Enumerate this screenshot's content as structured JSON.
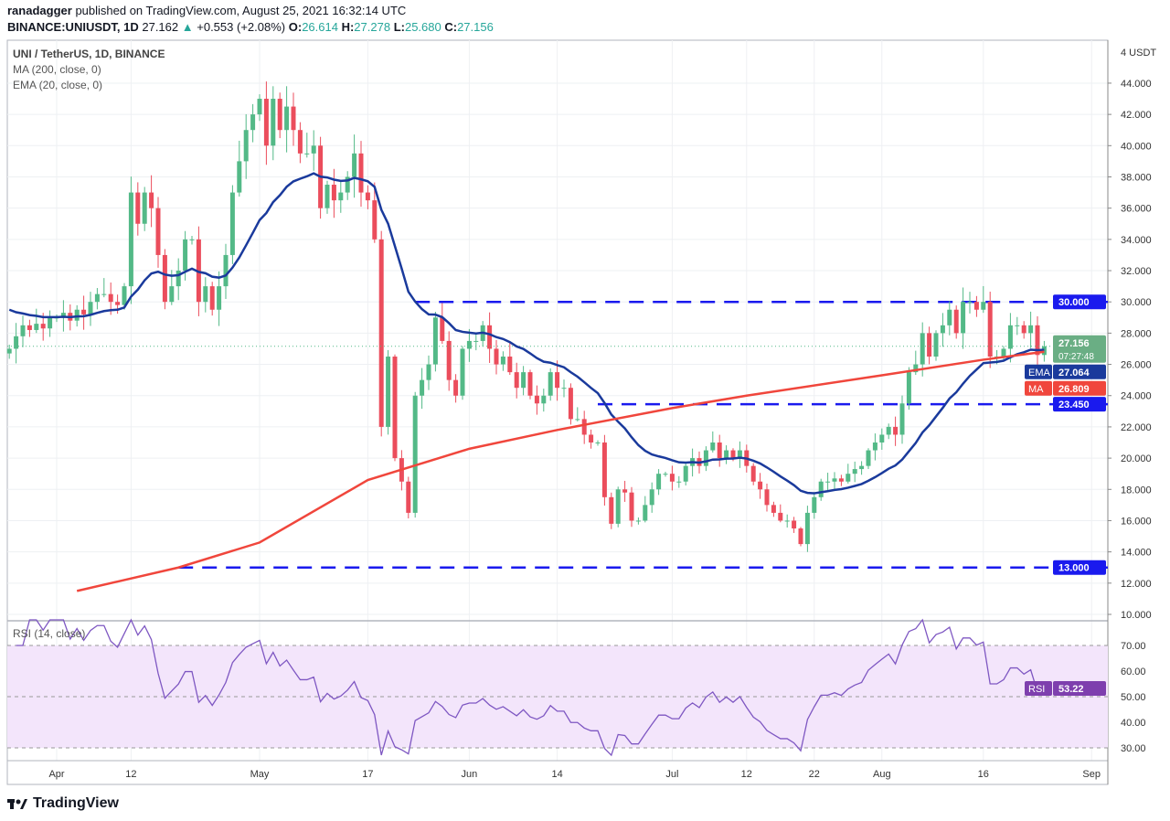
{
  "header": {
    "publisher": "ranadagger",
    "published_text": "published on TradingView.com, August 25, 2021 16:32:14 UTC",
    "symbol": "BINANCE:UNIUSDT, 1D",
    "last": "27.162",
    "change": "+0.553 (+2.08%)",
    "o_label": "O:",
    "o": "26.614",
    "h_label": "H:",
    "h": "27.278",
    "l_label": "L:",
    "l": "25.680",
    "c_label": "C:",
    "c": "27.156"
  },
  "legend": {
    "title": "UNI / TetherUS, 1D, BINANCE",
    "ma": "MA (200, close, 0)",
    "ema": "EMA (20, close, 0)",
    "rsi": "RSI (14, close)"
  },
  "labels": {
    "close": "27.156",
    "countdown": "07:27:48",
    "ema_tag": "EMA",
    "ema": "27.064",
    "ma_tag": "MA",
    "ma": "26.809",
    "rsi_tag": "RSI",
    "rsi": "53.22",
    "currency": "USDT"
  },
  "logo": "TradingView",
  "colors": {
    "up": "#53b987",
    "down": "#eb4d5c",
    "ema": "#1a3a9c",
    "ma": "#f0463c",
    "level": "#1a1aee",
    "rsi": "#7e57c2"
  },
  "chart_data": {
    "type": "candlestick",
    "title": "UNI / TetherUS, 1D, BINANCE",
    "start_date": "2021-03-25",
    "closes": [
      27,
      27.8,
      28.5,
      28.2,
      28.6,
      28.3,
      29,
      29,
      29.3,
      28.8,
      29.5,
      29.2,
      30,
      30.5,
      30.5,
      30,
      29.8,
      31,
      37,
      35,
      37,
      36,
      33,
      30,
      31,
      32,
      34,
      34,
      30,
      31,
      29.5,
      31,
      33,
      37,
      39,
      41,
      42,
      43,
      40,
      43,
      41,
      42.5,
      41,
      39.5,
      39.5,
      40,
      36,
      37.5,
      36.5,
      37,
      38,
      39.5,
      37,
      36.5,
      34,
      22,
      26.5,
      20,
      18.5,
      16.5,
      24,
      25,
      26,
      29,
      27.5,
      25,
      24,
      27,
      27.5,
      27.5,
      28.5,
      27,
      26,
      26.5,
      25.5,
      24.5,
      25.5,
      24,
      23.5,
      24,
      25.5,
      24.5,
      24.5,
      22.5,
      22.5,
      21.5,
      21,
      21,
      17.5,
      15.8,
      18,
      17.8,
      16,
      16,
      17,
      18,
      19,
      19,
      18.5,
      18.5,
      19.5,
      20,
      19.5,
      20.5,
      21,
      20,
      20.5,
      20,
      20.5,
      19.5,
      18.5,
      18,
      17,
      16.5,
      16,
      16,
      15.5,
      14.5,
      16.5,
      17.5,
      18.5,
      18.5,
      18.7,
      18.5,
      19,
      19.3,
      19.5,
      20.5,
      21,
      21.5,
      22,
      21.5,
      23.5,
      25.5,
      26,
      28,
      26.5,
      28,
      28.5,
      29.5,
      28,
      30,
      30,
      29.5,
      30,
      26.5,
      26.5,
      27,
      28.5,
      28.5,
      28,
      28.5,
      26.6,
      27.156
    ],
    "ma200": [
      [
        "2021-04-04",
        11.5
      ],
      [
        "2021-04-19",
        13
      ],
      [
        "2021-05-01",
        14.6
      ],
      [
        "2021-05-17",
        18.6
      ],
      [
        "2021-06-01",
        20.6
      ],
      [
        "2021-06-14",
        21.8
      ],
      [
        "2021-07-01",
        23.2
      ],
      [
        "2021-07-12",
        24
      ],
      [
        "2021-08-01",
        25.3
      ],
      [
        "2021-08-16",
        26.3
      ],
      [
        "2021-08-25",
        26.81
      ]
    ],
    "levels": [
      {
        "value": 30,
        "label": "30.000",
        "from": "2021-05-24"
      },
      {
        "value": 23.45,
        "label": "23.450",
        "from": "2021-06-20"
      },
      {
        "value": 13,
        "label": "13.000",
        "from": "2021-04-19"
      }
    ],
    "y_ticks": [
      "10.000",
      "12.000",
      "14.000",
      "16.000",
      "18.000",
      "20.000",
      "22.000",
      "24.000",
      "26.000",
      "28.000",
      "30.000",
      "32.000",
      "34.000",
      "36.000",
      "38.000",
      "40.000",
      "42.000",
      "44.000"
    ],
    "ylim": [
      10,
      46
    ],
    "rsi_ticks": [
      "30.00",
      "40.00",
      "50.00",
      "60.00",
      "70.00"
    ],
    "rsi_band": [
      30,
      70
    ],
    "x_ticks": [
      [
        "Apr",
        "2021-04-01"
      ],
      [
        "12",
        "2021-04-12"
      ],
      [
        "May",
        "2021-05-01"
      ],
      [
        "17",
        "2021-05-17"
      ],
      [
        "Jun",
        "2021-06-01"
      ],
      [
        "14",
        "2021-06-14"
      ],
      [
        "Jul",
        "2021-07-01"
      ],
      [
        "12",
        "2021-07-12"
      ],
      [
        "22",
        "2021-07-22"
      ],
      [
        "Aug",
        "2021-08-01"
      ],
      [
        "16",
        "2021-08-16"
      ],
      [
        "Sep",
        "2021-09-01"
      ]
    ]
  }
}
